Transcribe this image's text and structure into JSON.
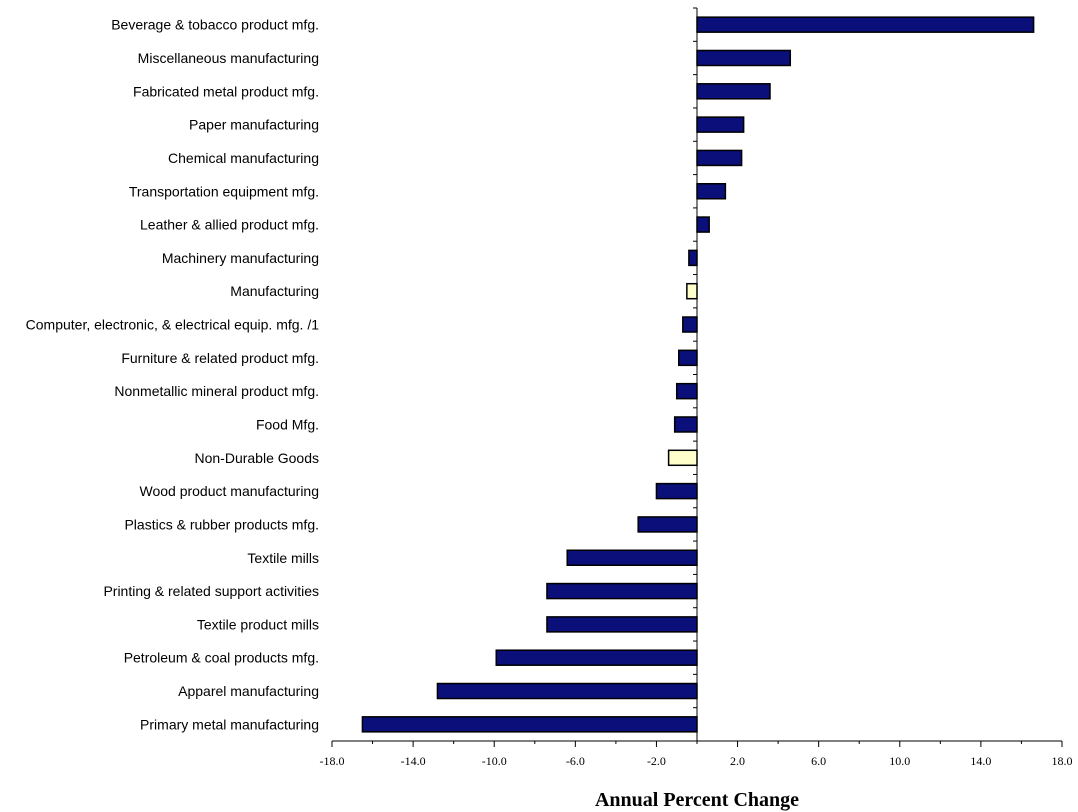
{
  "colors": {
    "bar": "#0a0f7a",
    "highlight": "#ffffcc",
    "stroke": "#000000"
  },
  "chart_data": {
    "type": "bar",
    "orientation": "horizontal",
    "categories": [
      "Beverage & tobacco product mfg.",
      "Miscellaneous manufacturing",
      "Fabricated metal product mfg.",
      "Paper manufacturing",
      "Chemical manufacturing",
      "Transportation equipment mfg.",
      "Leather & allied product mfg.",
      "Machinery manufacturing",
      "Manufacturing",
      "Computer, electronic, & electrical equip. mfg. /1",
      "Furniture & related product mfg.",
      "Nonmetallic mineral product mfg.",
      "Food Mfg.",
      "Non-Durable Goods",
      "Wood product manufacturing",
      "Plastics & rubber products mfg.",
      "Textile mills",
      "Printing & related support activities",
      "Textile product mills",
      "Petroleum & coal products mfg.",
      "Apparel manufacturing",
      "Primary metal manufacturing"
    ],
    "values": [
      16.6,
      4.6,
      3.6,
      2.3,
      2.2,
      1.4,
      0.6,
      -0.4,
      -0.5,
      -0.7,
      -0.9,
      -1.0,
      -1.1,
      -1.4,
      -2.0,
      -2.9,
      -6.4,
      -7.4,
      -7.4,
      -9.9,
      -12.8,
      -16.5
    ],
    "highlighted": [
      "Manufacturing",
      "Non-Durable Goods"
    ],
    "xlim": [
      -18,
      18
    ],
    "xticks": [
      "-18.0",
      "-14.0",
      "-10.0",
      "-6.0",
      "-2.0",
      "2.0",
      "6.0",
      "10.0",
      "14.0",
      "18.0"
    ],
    "xtick_values": [
      -18,
      -14,
      -10,
      -6,
      -2,
      2,
      6,
      10,
      14,
      18
    ],
    "xlabel": "Annual Percent Change",
    "ylabel": "",
    "title": "",
    "grid": false
  }
}
